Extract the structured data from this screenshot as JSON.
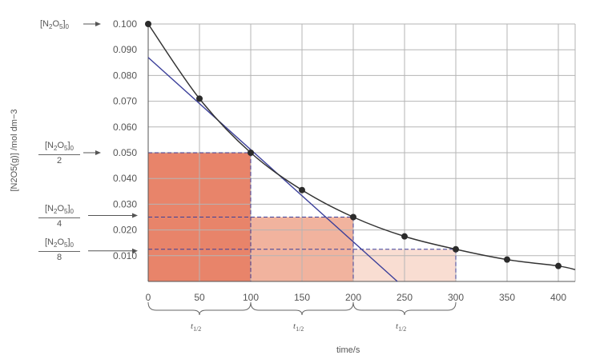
{
  "chart_data": {
    "type": "line",
    "xlabel": "time/s",
    "ylabel": "[N2O5(g)] /mol dm−3",
    "xlim": [
      0,
      420
    ],
    "ylim": [
      0,
      0.1
    ],
    "grid": true,
    "x_ticks": [
      0,
      50,
      100,
      150,
      200,
      250,
      300,
      350,
      400
    ],
    "y_ticks": [
      0.01,
      0.02,
      0.03,
      0.04,
      0.05,
      0.06,
      0.07,
      0.08,
      0.09,
      0.1
    ],
    "x_tick_labels": [
      "0",
      "50",
      "100",
      "150",
      "200",
      "250",
      "300",
      "350",
      "400"
    ],
    "y_tick_labels": [
      "0.010",
      "0.020",
      "0.030",
      "0.040",
      "0.050",
      "0.060",
      "0.070",
      "0.080",
      "0.090",
      "0.100"
    ],
    "series": [
      {
        "type": "line+points",
        "x": [
          0,
          50,
          100,
          150,
          200,
          250,
          300,
          350,
          400
        ],
        "y": [
          0.1,
          0.071,
          0.05,
          0.0355,
          0.025,
          0.0175,
          0.0125,
          0.0085,
          0.006
        ]
      }
    ],
    "tangent": {
      "x1": 0,
      "y1": 0.087,
      "x2": 243,
      "y2": 0
    },
    "half_life_regions": [
      {
        "x0": 0,
        "x1": 100,
        "y": 0.05,
        "color": "#e8846a"
      },
      {
        "x0": 100,
        "x1": 200,
        "y": 0.025,
        "color": "#f1b39e"
      },
      {
        "x0": 200,
        "x1": 300,
        "y": 0.0125,
        "color": "#f9ddd2"
      }
    ],
    "brace_labels": [
      "t",
      "t",
      "t"
    ],
    "brace_label_subscript": "1/2",
    "colors": {
      "curve": "#333333",
      "tangent": "#3b3f9a",
      "points": "#2b2b2b",
      "grid": "#b5b5b5",
      "dashed": "#3b3f9a"
    }
  },
  "annotations": {
    "initial": {
      "base": "[N",
      "sub1": "2",
      "mid": "O",
      "sub2": "5",
      "close": "]",
      "sub3": "0"
    },
    "fractions": [
      {
        "num_base": "[N",
        "num_sub1": "2",
        "num_mid": "O",
        "num_sub2": "5",
        "num_close": "]",
        "num_sub3": "0",
        "den": "2"
      },
      {
        "num_base": "[N",
        "num_sub1": "2",
        "num_mid": "O",
        "num_sub2": "5",
        "num_close": "]",
        "num_sub3": "0",
        "den": "4"
      },
      {
        "num_base": "[N",
        "num_sub1": "2",
        "num_mid": "O",
        "num_sub2": "5",
        "num_close": "]",
        "num_sub3": "0",
        "den": "8"
      }
    ]
  }
}
